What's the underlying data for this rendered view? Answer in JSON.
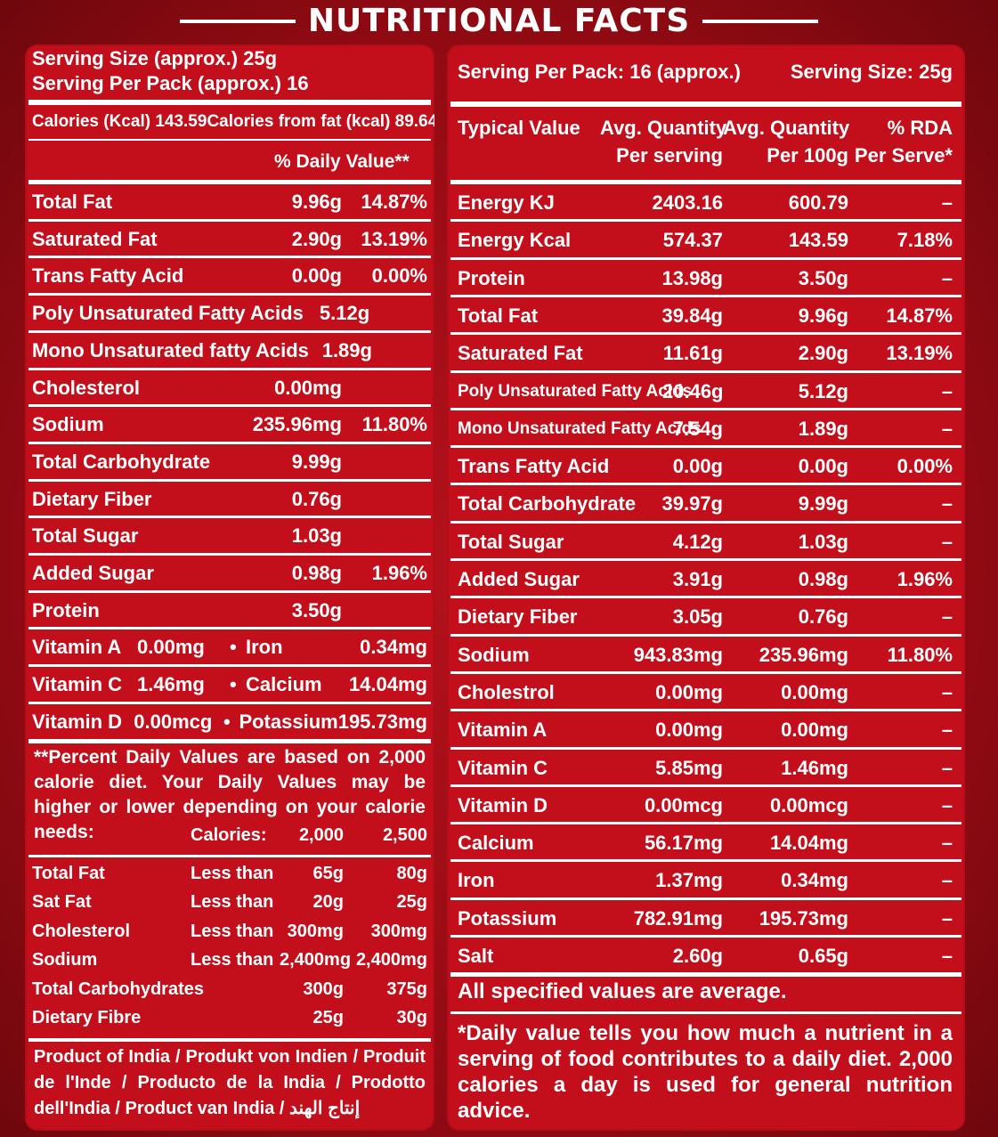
{
  "title": "NUTRITIONAL FACTS",
  "left": {
    "serving_size": "Serving Size (approx.) 25g",
    "serving_per_pack": "Serving Per Pack (approx.) 16",
    "calories": "Calories (Kcal) 143.59",
    "calories_fat": "Calories from fat (kcal) 89.64",
    "daily_value_header": "% Daily Value**",
    "nutrients": [
      {
        "name": "Total Fat",
        "amount": "9.96g",
        "dv": "14.87%"
      },
      {
        "name": "Saturated Fat",
        "amount": "2.90g",
        "dv": "13.19%"
      },
      {
        "name": "Trans Fatty Acid",
        "amount": "0.00g",
        "dv": "0.00%"
      },
      {
        "name": "Poly Unsaturated Fatty Acids",
        "amount": "5.12g",
        "dv": ""
      },
      {
        "name": "Mono Unsaturated fatty Acids",
        "amount": "1.89g",
        "dv": ""
      },
      {
        "name": "Cholesterol",
        "amount": "0.00mg",
        "dv": ""
      },
      {
        "name": "Sodium",
        "amount": "235.96mg",
        "dv": "11.80%"
      },
      {
        "name": "Total Carbohydrate",
        "amount": "9.99g",
        "dv": ""
      },
      {
        "name": "Dietary Fiber",
        "amount": "0.76g",
        "dv": ""
      },
      {
        "name": "Total Sugar",
        "amount": "1.03g",
        "dv": ""
      },
      {
        "name": "Added Sugar",
        "amount": "0.98g",
        "dv": "1.96%"
      },
      {
        "name": "Protein",
        "amount": "3.50g",
        "dv": ""
      }
    ],
    "vitamins": [
      {
        "name": "Vitamin A",
        "amount": "0.00mg",
        "bullet": "•",
        "name2": "Iron",
        "amount2": "0.34mg"
      },
      {
        "name": "Vitamin C",
        "amount": "1.46mg",
        "bullet": "•",
        "name2": "Calcium",
        "amount2": "14.04mg"
      },
      {
        "name": "Vitamin D",
        "amount": "0.00mcg",
        "bullet": "•",
        "name2": "Potassium",
        "amount2": "195.73mg"
      }
    ],
    "footnote": "**Percent Daily Values are based on 2,000 calorie diet. Your Daily Values may be higher or lower depending on your calorie needs:",
    "calorie_table": {
      "header": {
        "label": "Calories:",
        "c1": "2,000",
        "c2": "2,500"
      },
      "rows": [
        {
          "name": "Total Fat",
          "qual": "Less than",
          "c1": "65g",
          "c2": "80g"
        },
        {
          "name": "Sat Fat",
          "qual": "Less than",
          "c1": "20g",
          "c2": "25g"
        },
        {
          "name": "Cholesterol",
          "qual": "Less than",
          "c1": "300mg",
          "c2": "300mg"
        },
        {
          "name": "Sodium",
          "qual": "Less than",
          "c1": "2,400mg",
          "c2": "2,400mg"
        },
        {
          "name": "Total Carbohydrates",
          "qual": "",
          "c1": "300g",
          "c2": "375g"
        },
        {
          "name": "Dietary Fibre",
          "qual": "",
          "c1": "25g",
          "c2": "30g"
        }
      ]
    },
    "origin": "Product of India / Produkt von Indien / Produit de l'Inde / Producto de la India / Prodotto dell'India / Product van India / إنتاج الهند"
  },
  "right": {
    "serving_per_pack": "Serving Per Pack: 16 (approx.)",
    "serving_size": "Serving Size: 25g",
    "headers": {
      "typical": "Typical Value",
      "per_serving_1": "Avg. Quantity",
      "per_serving_2": "Per serving",
      "per_100_1": "Avg. Quantity",
      "per_100_2": "Per 100g",
      "rda_1": "% RDA",
      "rda_2": "Per Serve*"
    },
    "rows": [
      {
        "name": "Energy KJ",
        "serving": "2403.16",
        "per100": "600.79",
        "rda": "–"
      },
      {
        "name": "Energy Kcal",
        "serving": "574.37",
        "per100": "143.59",
        "rda": "7.18%"
      },
      {
        "name": "Protein",
        "serving": "13.98g",
        "per100": "3.50g",
        "rda": "–"
      },
      {
        "name": "Total Fat",
        "serving": "39.84g",
        "per100": "9.96g",
        "rda": "14.87%"
      },
      {
        "name": "Saturated Fat",
        "serving": "11.61g",
        "per100": "2.90g",
        "rda": "13.19%"
      },
      {
        "name": "Poly Unsaturated Fatty Acids",
        "serving": "20.46g",
        "per100": "5.12g",
        "rda": "–"
      },
      {
        "name": "Mono Unsaturated Fatty Acids",
        "serving": "7.54g",
        "per100": "1.89g",
        "rda": "–"
      },
      {
        "name": "Trans Fatty Acid",
        "serving": "0.00g",
        "per100": "0.00g",
        "rda": "0.00%"
      },
      {
        "name": "Total Carbohydrate",
        "serving": "39.97g",
        "per100": "9.99g",
        "rda": "–"
      },
      {
        "name": "Total Sugar",
        "serving": "4.12g",
        "per100": "1.03g",
        "rda": "–"
      },
      {
        "name": "Added Sugar",
        "serving": "3.91g",
        "per100": "0.98g",
        "rda": "1.96%"
      },
      {
        "name": "Dietary Fiber",
        "serving": "3.05g",
        "per100": "0.76g",
        "rda": "–"
      },
      {
        "name": "Sodium",
        "serving": "943.83mg",
        "per100": "235.96mg",
        "rda": "11.80%"
      },
      {
        "name": "Cholestrol",
        "serving": "0.00mg",
        "per100": "0.00mg",
        "rda": "–"
      },
      {
        "name": "Vitamin A",
        "serving": "0.00mg",
        "per100": "0.00mg",
        "rda": "–"
      },
      {
        "name": "Vitamin C",
        "serving": "5.85mg",
        "per100": "1.46mg",
        "rda": "–"
      },
      {
        "name": "Vitamin D",
        "serving": "0.00mcg",
        "per100": "0.00mcg",
        "rda": "–"
      },
      {
        "name": "Calcium",
        "serving": "56.17mg",
        "per100": "14.04mg",
        "rda": "–"
      },
      {
        "name": "Iron",
        "serving": "1.37mg",
        "per100": "0.34mg",
        "rda": "–"
      },
      {
        "name": "Potassium",
        "serving": "782.91mg",
        "per100": "195.73mg",
        "rda": "–"
      },
      {
        "name": "Salt",
        "serving": "2.60g",
        "per100": "0.65g",
        "rda": "–"
      }
    ],
    "average_note": "All specified values are average.",
    "footnote": "*Daily value tells you how much a nutrient in a serving of food contributes to a daily diet. 2,000 calories a day is used for general nutrition advice."
  }
}
